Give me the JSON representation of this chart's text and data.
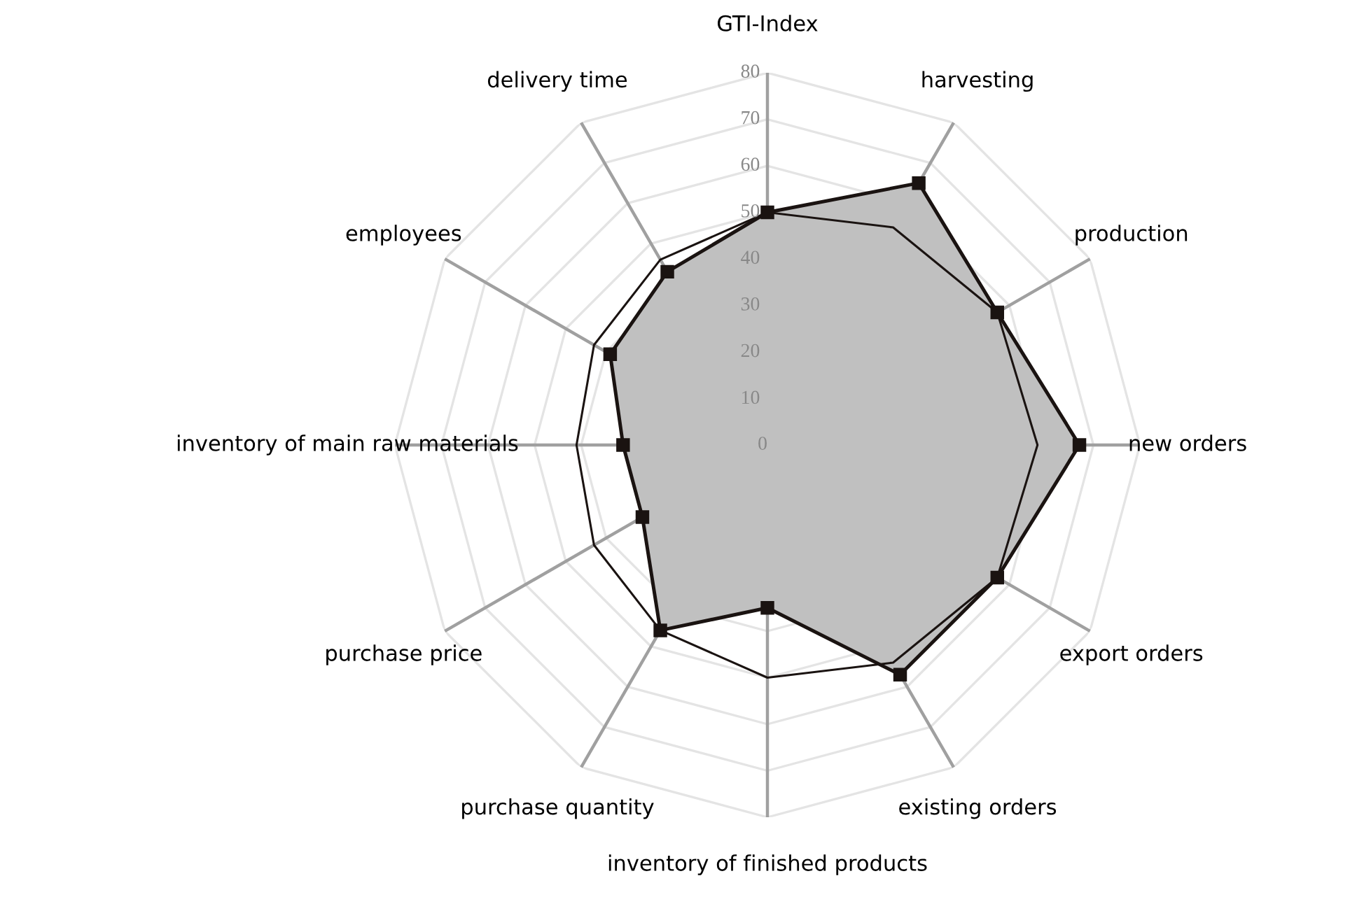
{
  "chart_data": {
    "type": "radar",
    "categories": [
      "GTI-Index",
      "harvesting",
      "production",
      "new orders",
      "export orders",
      "existing orders",
      "inventory of finished products",
      "purchase quantity",
      "purchase price",
      "inventory of main raw materials",
      "employees",
      "delivery time"
    ],
    "series": [
      {
        "color": "#c0c0c0",
        "marker": "square",
        "values": [
          50,
          65,
          57,
          67,
          57,
          57,
          35,
          46,
          31,
          31,
          39,
          43
        ]
      },
      {
        "color": "#1a1311",
        "marker": "none",
        "values": [
          50,
          54,
          57,
          58,
          57,
          54,
          50,
          46,
          43,
          41,
          43,
          46
        ]
      }
    ],
    "ylim": [
      0,
      80
    ],
    "yticks": [
      0,
      10,
      20,
      30,
      40,
      50,
      60,
      70,
      80
    ],
    "grid": true
  }
}
